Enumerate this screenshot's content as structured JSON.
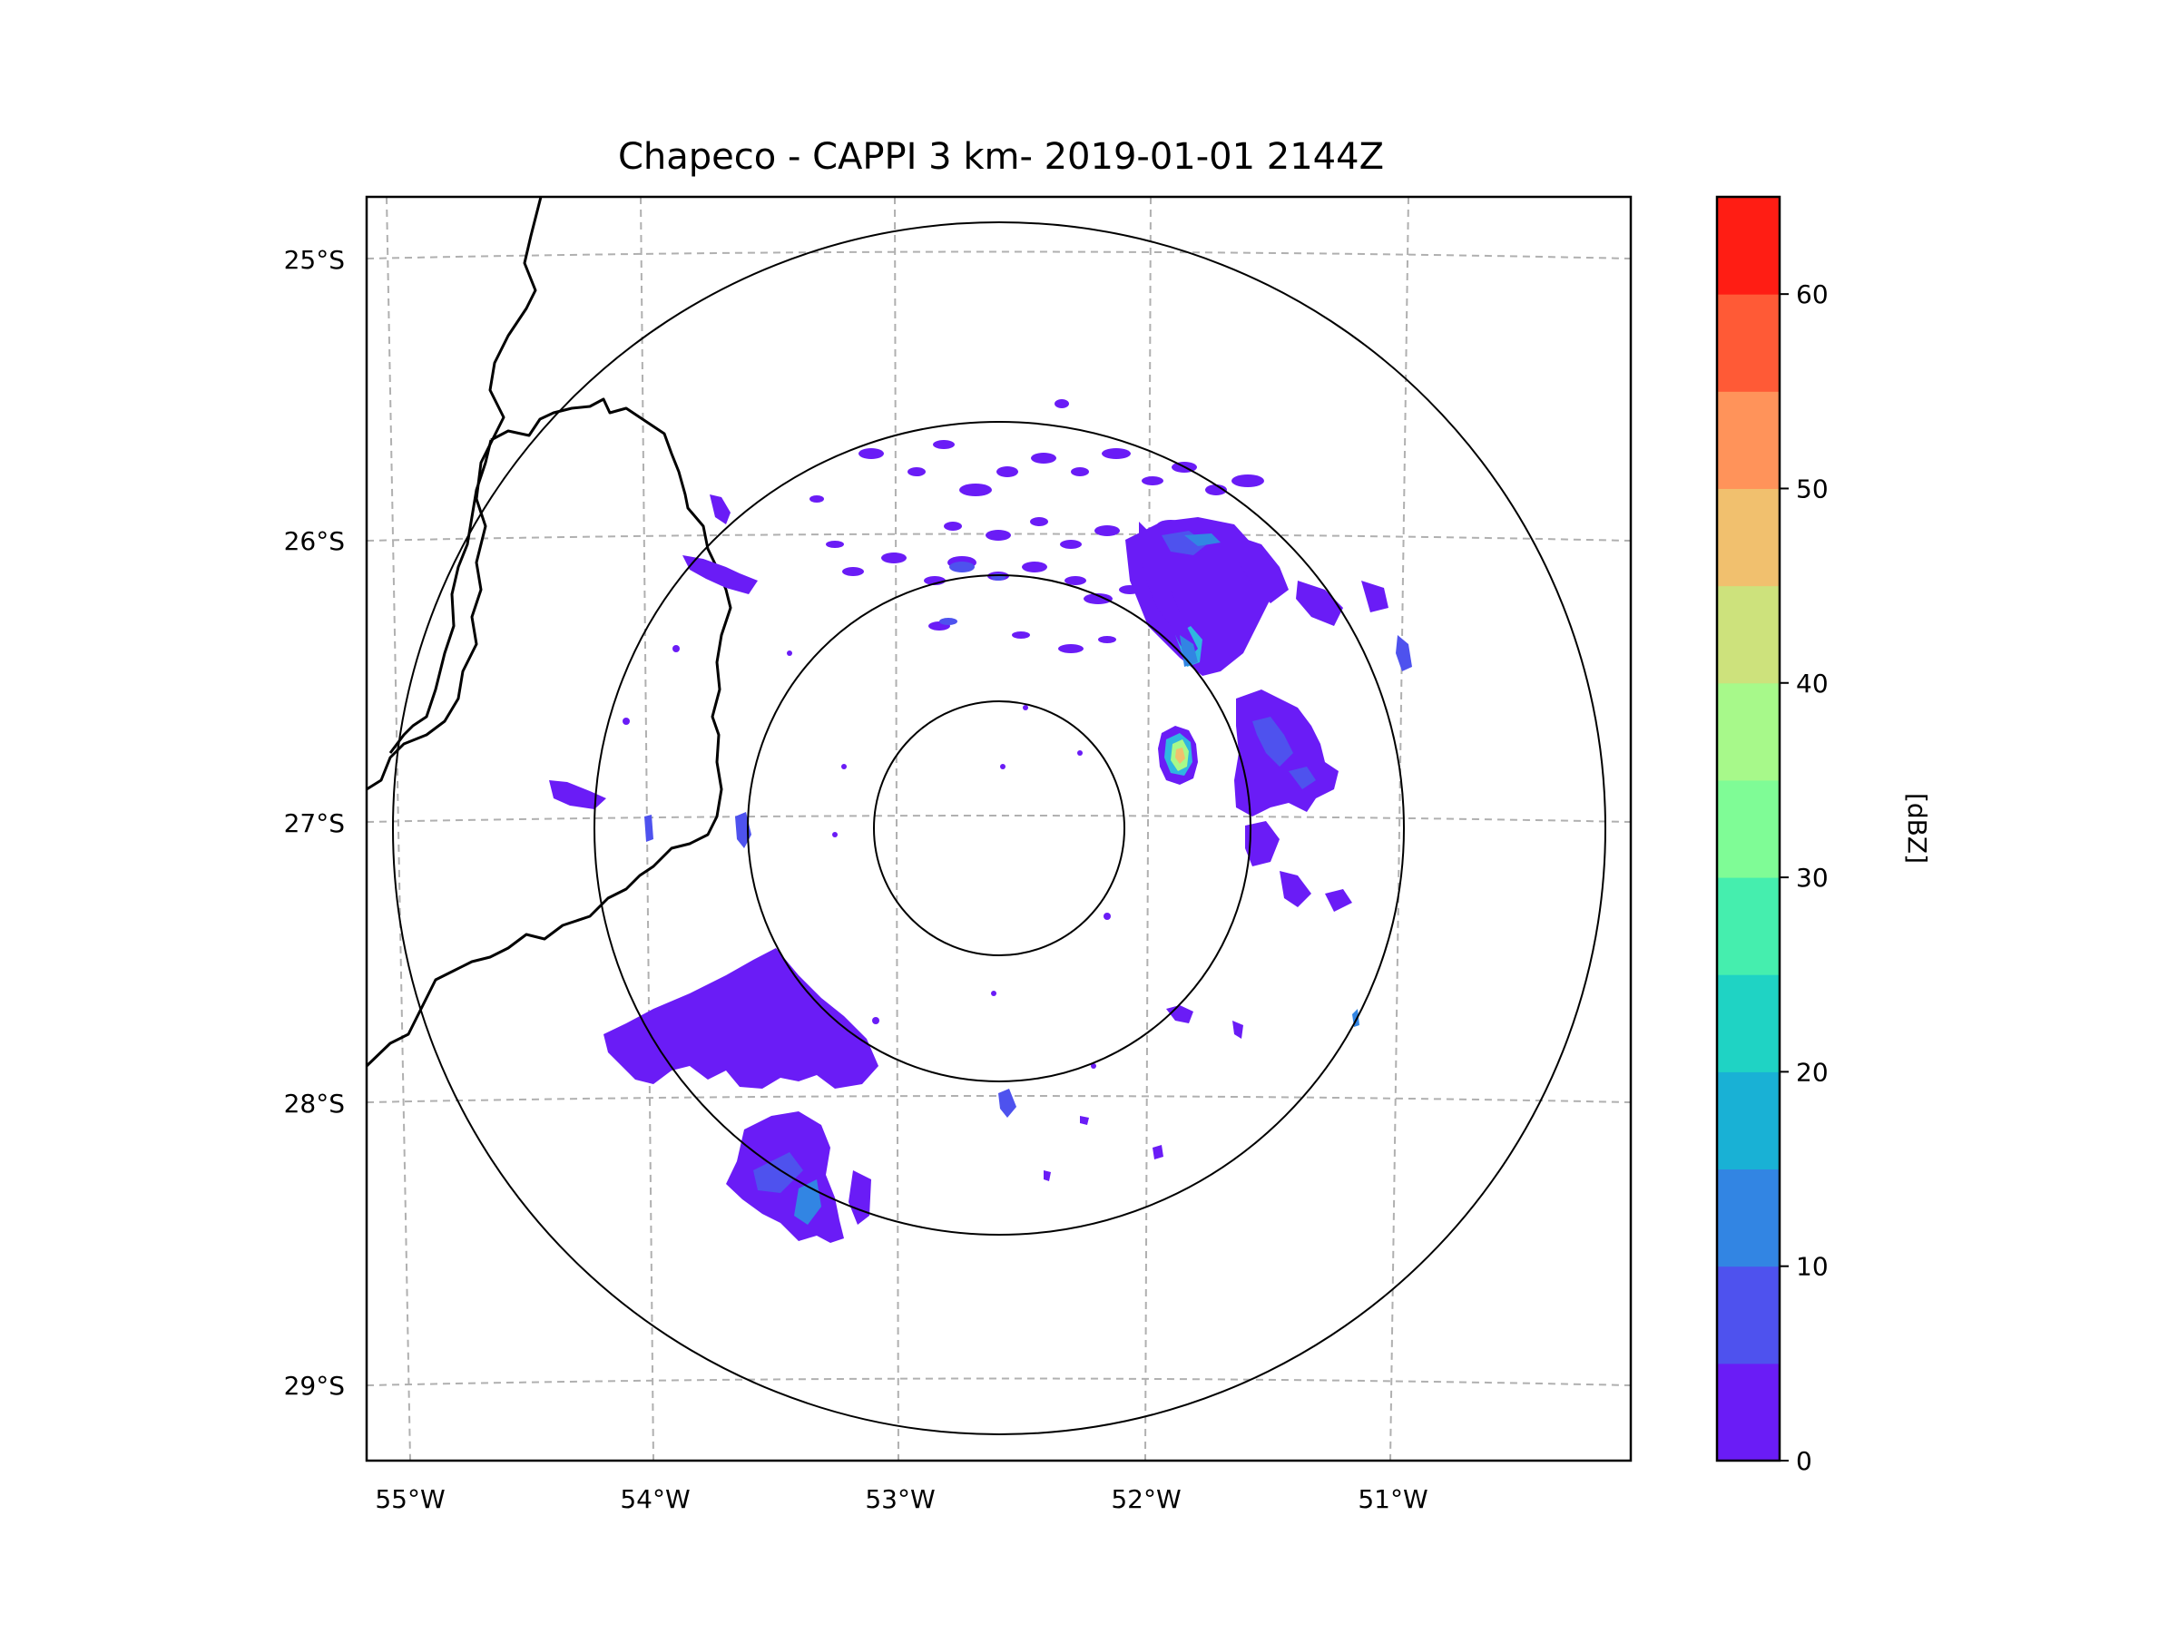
{
  "title": "Chapeco - CAPPI 3 km- 2019-01-01 2144Z",
  "map": {
    "lat_labels": [
      "25°S",
      "26°S",
      "27°S",
      "28°S",
      "29°S"
    ],
    "lon_labels": [
      "55°W",
      "54°W",
      "53°W",
      "52°W",
      "51°W"
    ],
    "radar_center": {
      "lon": -52.6,
      "lat": -27.05
    },
    "range_rings_count": 4,
    "gridlines": "dashed gray"
  },
  "colorbar": {
    "label": "[dBZ]",
    "tick_labels": [
      "0",
      "10",
      "20",
      "30",
      "40",
      "50",
      "60"
    ],
    "range": [
      0,
      65
    ],
    "step": 5,
    "colors": [
      "#6a1cf6",
      "#4e52ee",
      "#3285e3",
      "#19b1d5",
      "#1fd3c4",
      "#45eeae",
      "#7ffc96",
      "#a7f98a",
      "#cde27c",
      "#f1c06e",
      "#ff935a",
      "#ff5a36",
      "#ff1d14"
    ]
  },
  "echo_colors": {
    "weak": "#6a1cf6",
    "light": "#4e52ee",
    "moderate": "#2fb6e0",
    "strong": "#a7f98a",
    "core": "#f1c06e"
  }
}
